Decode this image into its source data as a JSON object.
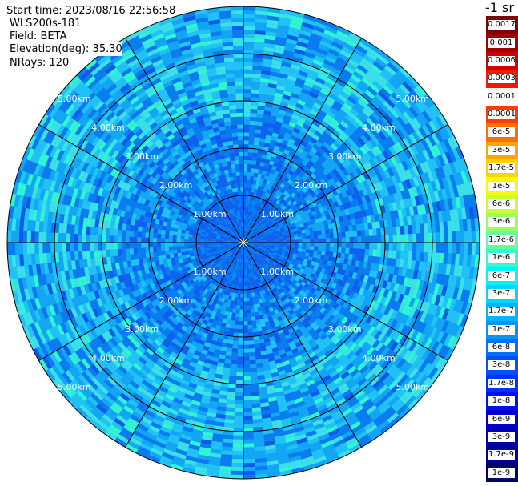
{
  "header": {
    "start_time": "Start time: 2023/08/16 22:56:58",
    "device": "WLS200s-181",
    "field": "Field: BETA",
    "elevation": "Elevation(deg): 35.30",
    "nrays": "NRays: 120"
  },
  "colorbar": {
    "unit": "-1 sr",
    "labels": [
      "0.0017",
      "0.001",
      "0.0006",
      "0.0003",
      "0.00017",
      "0.0001",
      "6e-5",
      "3e-5",
      "1.7e-5",
      "1e-5",
      "6e-6",
      "3e-6",
      "1.7e-6",
      "1e-6",
      "6e-7",
      "3e-7",
      "1.7e-7",
      "1e-7",
      "6e-8",
      "3e-8",
      "1.7e-8",
      "1e-8",
      "6e-9",
      "3e-9",
      "1.7e-9",
      "1e-9"
    ],
    "colors": [
      "#7f0000",
      "#a50000",
      "#cc0000",
      "#ee1a00",
      "#ffffff",
      "#ff3c00",
      "#ff7000",
      "#ffa400",
      "#ffd400",
      "#f4ff00",
      "#c8ff30",
      "#98ff60",
      "#60ffa0",
      "#2cffd0",
      "#00f4ff",
      "#00d4ff",
      "#00b4ff",
      "#0094ff",
      "#0070ff",
      "#0050ff",
      "#0030ff",
      "#0010f0",
      "#0000d0",
      "#0000b0",
      "#000090",
      "#00006a"
    ]
  },
  "range_rings": {
    "labels": [
      "1.00km",
      "2.00km",
      "3.00km",
      "4.00km",
      "5.00km"
    ]
  }
}
